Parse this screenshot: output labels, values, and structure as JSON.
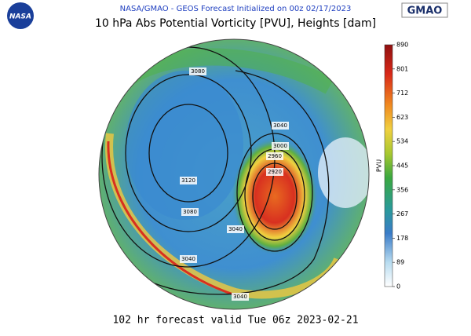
{
  "header": {
    "subtitle": "NASA/GMAO - GEOS Forecast Initialized on 00z 02/17/2023",
    "title": "10 hPa Abs Potential Vorticity [PVU], Heights [dam]",
    "logo_left": "NASA",
    "logo_right": "GMAO"
  },
  "colorbar": {
    "label": "PVU",
    "range": [
      0,
      890
    ],
    "ticks": [
      0,
      89,
      178,
      267,
      356,
      445,
      534,
      623,
      712,
      801,
      890
    ]
  },
  "contour_labels": [
    3080,
    3120,
    3080,
    3040,
    3040,
    3000,
    2960,
    2920,
    3040,
    3040
  ],
  "footer": "102 hr forecast valid Tue 06z 2023-02-21"
}
